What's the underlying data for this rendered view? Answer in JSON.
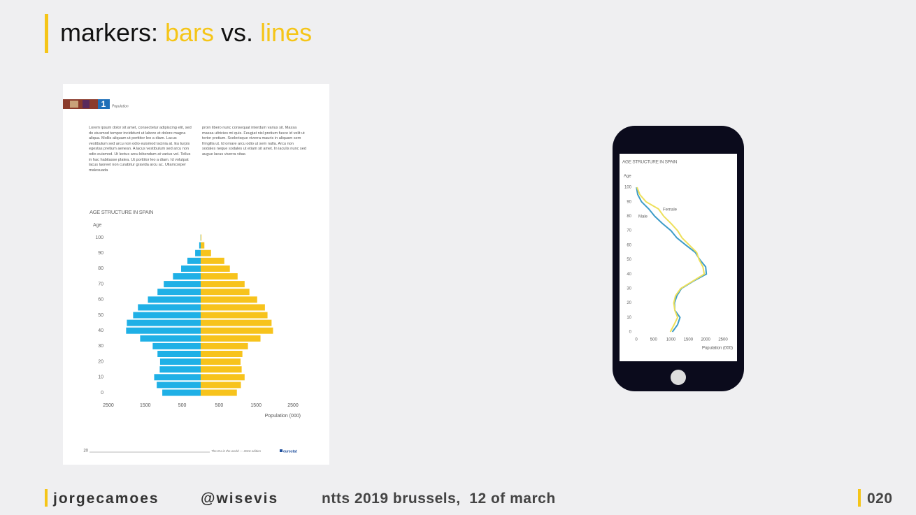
{
  "slide": {
    "title": [
      "markers: ",
      "bars",
      " vs. ",
      "lines"
    ],
    "footer": {
      "author": "jorgecamoes",
      "handle": "@wisevis",
      "event": "ntts 2019 brussels,  12 of march",
      "page": "020"
    }
  },
  "document": {
    "chapter": "1",
    "section": "Population",
    "columns": [
      "Lorem ipsum dolor sit amet, consectetur adipiscing elit, sed do eiusmod tempor incididunt ut labore et dolore magna aliqua. Mollis aliquam ut porttitor leo a diam. Lacus vestibulum sed arcu non odio euismod lacinia at. Eu turpis egestas pretium aenean. A lacus vestibulum sed arcu non odio euismod. Ut lectus arcu bibendum at varius vel. Tellus in hac habitasse platea. Ut porttitor leo a diam. Id volutpat lacus laoreet non curabitur gravida arcu ac. Ullamcorper malesuada",
      "proin libero nunc consequat interdum varius sit. Massa massa ultricies mi quis. Feugiat nisl pretium fusce id velit ut tortor pretium. Scelerisque viverra mauris in aliquam sem fringilla ut. Id ornare arcu odio ut sem nulla. Arcu non sodales neque sodales ut etiam sit amet. In iaculis nunc sed augue lacus viverra vitae."
    ],
    "page_number": "20",
    "running_footer": "The EU in the world — 2016 edition",
    "publisher": "eurostat"
  },
  "chart_data": [
    {
      "type": "pyramid",
      "title": "AGE STRUCTURE IN SPAIN",
      "y_label": "Age",
      "x_label": "Population (000)",
      "y": [
        0,
        5,
        10,
        15,
        20,
        25,
        30,
        35,
        40,
        45,
        50,
        55,
        60,
        65,
        70,
        75,
        80,
        85,
        90,
        95,
        100
      ],
      "ylim": [
        0,
        100
      ],
      "yticks": [
        0,
        10,
        20,
        30,
        40,
        50,
        60,
        70,
        80,
        90,
        100
      ],
      "xlim": [
        -2500,
        2500
      ],
      "xticks": [
        {
          "value": -2500,
          "label": "2500"
        },
        {
          "value": -1500,
          "label": "1500"
        },
        {
          "value": -500,
          "label": "500"
        },
        500,
        1500,
        2500
      ],
      "series": [
        {
          "side": "left",
          "color": "#1fb0e6",
          "values": [
            1040,
            1190,
            1260,
            1110,
            1100,
            1170,
            1300,
            1640,
            2020,
            2000,
            1830,
            1700,
            1430,
            1170,
            1000,
            750,
            530,
            360,
            150,
            40,
            5
          ]
        },
        {
          "side": "right",
          "color": "#f7c31c",
          "values": [
            980,
            1090,
            1190,
            1110,
            1080,
            1130,
            1280,
            1620,
            1960,
            1920,
            1810,
            1740,
            1530,
            1320,
            1190,
            1000,
            790,
            640,
            280,
            100,
            20
          ]
        }
      ]
    },
    {
      "type": "line",
      "title": "AGE STRUCTURE IN SPAIN",
      "y_label": "Age",
      "x_label": "Population (000)",
      "y": [
        0,
        5,
        10,
        15,
        20,
        25,
        30,
        35,
        40,
        45,
        50,
        55,
        60,
        65,
        70,
        75,
        80,
        85,
        90,
        95,
        100
      ],
      "ylim": [
        0,
        100
      ],
      "yticks": [
        0,
        10,
        20,
        30,
        40,
        50,
        60,
        70,
        80,
        90,
        100
      ],
      "xlim": [
        0,
        2500
      ],
      "xticks": [
        0,
        500,
        1000,
        1500,
        2000,
        2500
      ],
      "series": [
        {
          "name": "Male",
          "color": "#3d9cc8",
          "values": [
            1040,
            1190,
            1260,
            1110,
            1100,
            1170,
            1300,
            1640,
            2020,
            2000,
            1830,
            1700,
            1430,
            1170,
            1000,
            750,
            530,
            360,
            150,
            40,
            5
          ]
        },
        {
          "name": "Female",
          "color": "#eee05a",
          "values": [
            980,
            1090,
            1190,
            1110,
            1080,
            1130,
            1280,
            1620,
            1960,
            1920,
            1810,
            1740,
            1530,
            1320,
            1190,
            1000,
            790,
            640,
            280,
            100,
            20
          ]
        }
      ]
    }
  ]
}
